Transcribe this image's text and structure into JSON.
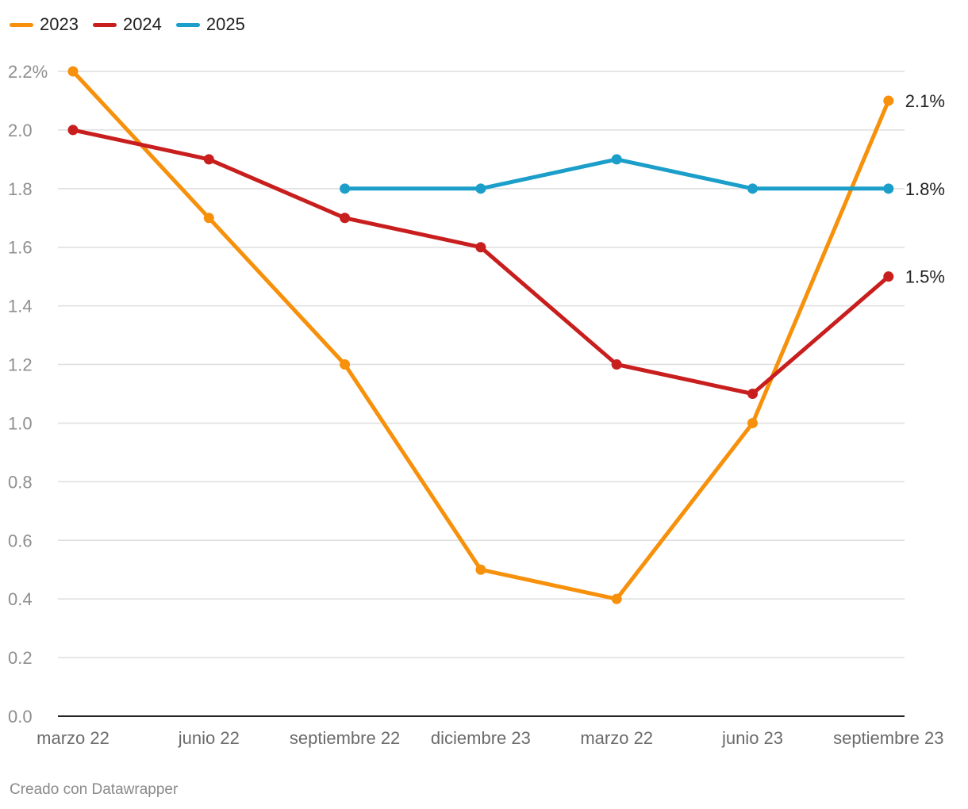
{
  "footer": {
    "credit": "Creado con Datawrapper"
  },
  "chart_data": {
    "type": "line",
    "categories": [
      "marzo 22",
      "junio 22",
      "septiembre 22",
      "diciembre 23",
      "marzo 22",
      "junio 23",
      "septiembre 23"
    ],
    "series": [
      {
        "name": "2023",
        "color": "#f7900a",
        "values": [
          2.2,
          1.7,
          1.2,
          0.5,
          0.4,
          1.0,
          2.1
        ],
        "end_label": "2.1%"
      },
      {
        "name": "2024",
        "color": "#c81e1e",
        "values": [
          2.0,
          1.9,
          1.7,
          1.6,
          1.2,
          1.1,
          1.5
        ],
        "end_label": "1.5%"
      },
      {
        "name": "2025",
        "color": "#1b9ec9",
        "values": [
          null,
          null,
          1.8,
          1.8,
          1.9,
          1.8,
          1.8
        ],
        "end_label": "1.8%"
      }
    ],
    "y_ticks": [
      "0.0",
      "0.2",
      "0.4",
      "0.6",
      "0.8",
      "1.0",
      "1.2",
      "1.4",
      "1.6",
      "1.8",
      "2.0",
      "2.2%"
    ],
    "ylim": [
      0,
      2.2
    ],
    "grid": true,
    "legend_position": "top-left"
  }
}
